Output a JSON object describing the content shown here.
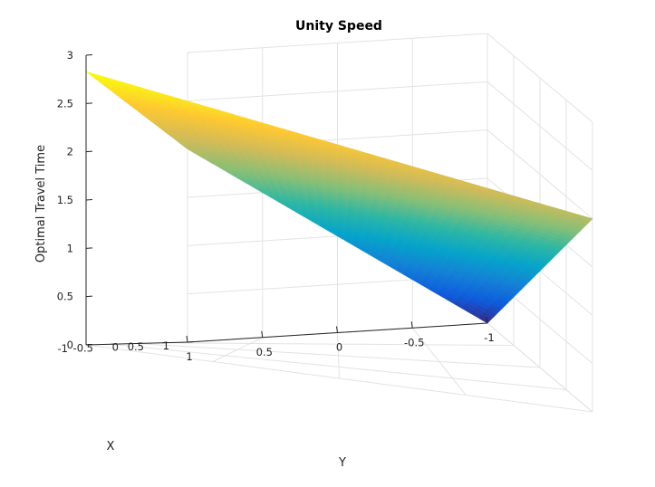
{
  "chart_data": {
    "type": "surface3d",
    "title": "Unity Speed",
    "xlabel": "X",
    "ylabel": "Y",
    "zlabel": "Optimal Travel Time",
    "xlim": [
      -1,
      1
    ],
    "ylim": [
      -1,
      1
    ],
    "zlim": [
      0,
      3
    ],
    "x_ticks": [
      "-1",
      "-0.5",
      "0",
      "0.5",
      "1"
    ],
    "y_ticks": [
      "1",
      "0.5",
      "0",
      "-0.5",
      "-1"
    ],
    "z_ticks": [
      "0",
      "0.5",
      "1",
      "1.5",
      "2",
      "2.5",
      "3"
    ],
    "corners": [
      {
        "x": -1,
        "y": 1,
        "z": 2.83
      },
      {
        "x": 1,
        "y": 1,
        "z": 2.0
      },
      {
        "x": 1,
        "y": -1,
        "z": 0.0
      },
      {
        "x": -1,
        "y": -1,
        "z": 2.0
      }
    ],
    "colormap": [
      "#352a87",
      "#0f5cdd",
      "#1481d6",
      "#06a4ca",
      "#2eb7a4",
      "#87bf77",
      "#d1bb59",
      "#fec832",
      "#f9fb0e"
    ],
    "grid": true
  }
}
